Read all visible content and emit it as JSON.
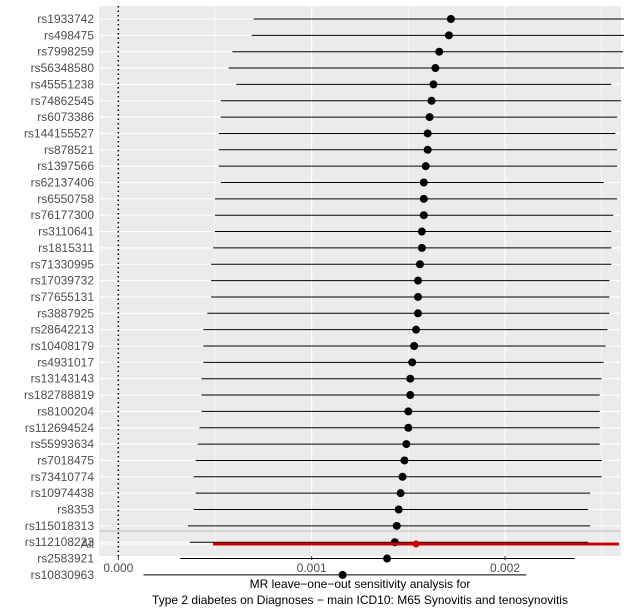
{
  "chart_data": {
    "type": "scatter",
    "subtype": "forest-plot-leave-one-out",
    "title": "",
    "xlabel": "MR leave−one−out sensitivity analysis for",
    "xlabel_line2": "Type 2 diabetes on Diagnoses − main ICD10: M65 Synovitis and tenosynovitis",
    "ylabel": "",
    "xlim": [
      -0.0001,
      0.0026
    ],
    "x_ticks": [
      0.0,
      0.001,
      0.002
    ],
    "x_tick_labels": [
      "0.000",
      "0.001",
      "0.002"
    ],
    "reference_line_x": 0,
    "grid": true,
    "background_color": "#ebebeb",
    "point_color": "#000000",
    "summary_color": "#cc0000",
    "snps": [
      {
        "label": "rs1933742",
        "estimate": 0.00172,
        "lower": 0.0007,
        "upper": 0.00265
      },
      {
        "label": "rs498475",
        "estimate": 0.00171,
        "lower": 0.00069,
        "upper": 0.00263
      },
      {
        "label": "rs7998259",
        "estimate": 0.00166,
        "lower": 0.00059,
        "upper": 0.00261
      },
      {
        "label": "rs56348580",
        "estimate": 0.00164,
        "lower": 0.00057,
        "upper": 0.00262
      },
      {
        "label": "rs45551238",
        "estimate": 0.00163,
        "lower": 0.00061,
        "upper": 0.00255
      },
      {
        "label": "rs74862545",
        "estimate": 0.00162,
        "lower": 0.00053,
        "upper": 0.0026
      },
      {
        "label": "rs6073386",
        "estimate": 0.00161,
        "lower": 0.00053,
        "upper": 0.00258
      },
      {
        "label": "rs144155527",
        "estimate": 0.0016,
        "lower": 0.00052,
        "upper": 0.00257
      },
      {
        "label": "rs878521",
        "estimate": 0.0016,
        "lower": 0.00052,
        "upper": 0.00258
      },
      {
        "label": "rs1397566",
        "estimate": 0.00159,
        "lower": 0.00052,
        "upper": 0.00258
      },
      {
        "label": "rs62137406",
        "estimate": 0.00158,
        "lower": 0.00053,
        "upper": 0.00251
      },
      {
        "label": "rs6550758",
        "estimate": 0.00158,
        "lower": 0.0005,
        "upper": 0.00258
      },
      {
        "label": "rs76177300",
        "estimate": 0.00158,
        "lower": 0.0005,
        "upper": 0.00256
      },
      {
        "label": "rs3110641",
        "estimate": 0.00157,
        "lower": 0.0005,
        "upper": 0.00255
      },
      {
        "label": "rs1815311",
        "estimate": 0.00157,
        "lower": 0.00049,
        "upper": 0.00255
      },
      {
        "label": "rs71330995",
        "estimate": 0.00156,
        "lower": 0.00048,
        "upper": 0.00255
      },
      {
        "label": "rs17039732",
        "estimate": 0.00155,
        "lower": 0.00048,
        "upper": 0.00254
      },
      {
        "label": "rs77655131",
        "estimate": 0.00155,
        "lower": 0.00048,
        "upper": 0.00254
      },
      {
        "label": "rs3887925",
        "estimate": 0.00155,
        "lower": 0.00046,
        "upper": 0.00254
      },
      {
        "label": "rs28642213",
        "estimate": 0.00154,
        "lower": 0.00044,
        "upper": 0.00253
      },
      {
        "label": "rs10408179",
        "estimate": 0.00153,
        "lower": 0.00044,
        "upper": 0.00252
      },
      {
        "label": "rs4931017",
        "estimate": 0.00152,
        "lower": 0.00044,
        "upper": 0.00251
      },
      {
        "label": "rs13143143",
        "estimate": 0.00151,
        "lower": 0.00043,
        "upper": 0.0025
      },
      {
        "label": "rs182788819",
        "estimate": 0.00151,
        "lower": 0.00043,
        "upper": 0.00249
      },
      {
        "label": "rs8100204",
        "estimate": 0.0015,
        "lower": 0.00043,
        "upper": 0.00249
      },
      {
        "label": "rs112694524",
        "estimate": 0.0015,
        "lower": 0.00042,
        "upper": 0.00249
      },
      {
        "label": "rs55993634",
        "estimate": 0.00149,
        "lower": 0.00041,
        "upper": 0.00249
      },
      {
        "label": "rs7018475",
        "estimate": 0.00148,
        "lower": 0.0004,
        "upper": 0.0025
      },
      {
        "label": "rs73410774",
        "estimate": 0.00147,
        "lower": 0.00039,
        "upper": 0.0025
      },
      {
        "label": "rs10974438",
        "estimate": 0.00146,
        "lower": 0.0004,
        "upper": 0.00244
      },
      {
        "label": "rs8353",
        "estimate": 0.00145,
        "lower": 0.00039,
        "upper": 0.00243
      },
      {
        "label": "rs115018313",
        "estimate": 0.00144,
        "lower": 0.00036,
        "upper": 0.00244
      },
      {
        "label": "rs112108223",
        "estimate": 0.00143,
        "lower": 0.00037,
        "upper": 0.00243
      },
      {
        "label": "rs2583921",
        "estimate": 0.00139,
        "lower": 0.00032,
        "upper": 0.00236
      },
      {
        "label": "rs10830963",
        "estimate": 0.00116,
        "lower": 0.00013,
        "upper": 0.00211
      }
    ],
    "summary": {
      "label": "All",
      "estimate": 0.00154,
      "lower": 0.00049,
      "upper": 0.00259
    }
  }
}
